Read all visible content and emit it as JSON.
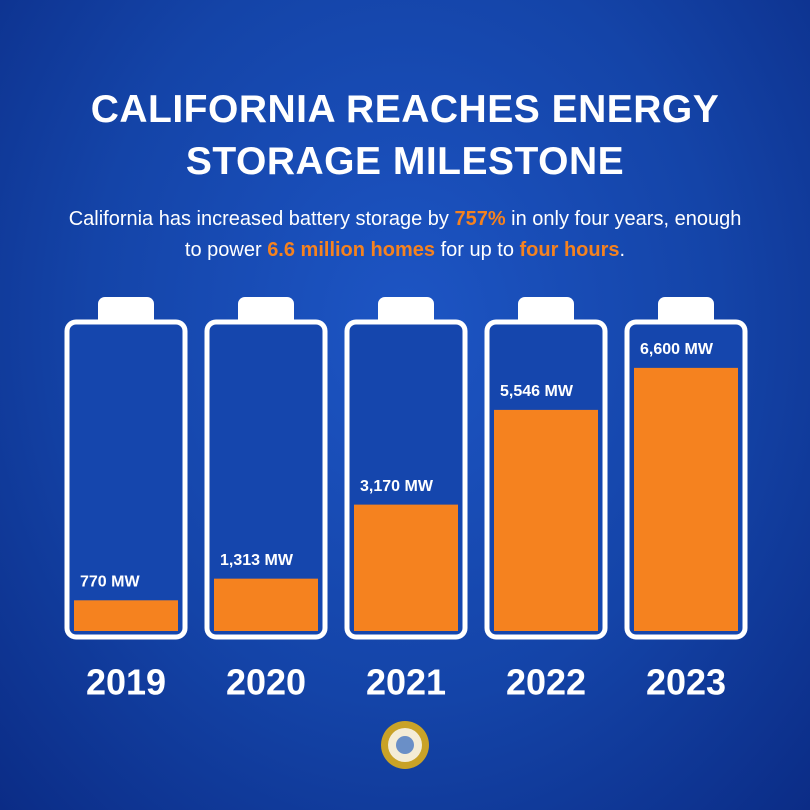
{
  "chart_data": {
    "type": "battery",
    "title": "CALIFORNIA REACHES ENERGY STORAGE MILESTONE",
    "subtitle": [
      {
        "text": "California has increased battery storage by ",
        "highlight": false
      },
      {
        "text": "757%",
        "highlight": true
      },
      {
        "text": " in only four years, enough to power ",
        "highlight": false
      },
      {
        "text": "6.6 million homes",
        "highlight": true
      },
      {
        "text": " for up to ",
        "highlight": false
      },
      {
        "text": "four hours",
        "highlight": true
      },
      {
        "text": ".",
        "highlight": false
      }
    ],
    "categories": [
      "2019",
      "2020",
      "2021",
      "2022",
      "2023"
    ],
    "values": [
      770,
      1313,
      3170,
      5546,
      6600
    ],
    "value_labels": [
      "770 MW",
      "1,313 MW",
      "3,170 MW",
      "5,546 MW",
      "6,600 MW"
    ],
    "ylim": [
      0,
      7600
    ],
    "color": "#f5821f",
    "highlight_color": "#f5821f"
  }
}
